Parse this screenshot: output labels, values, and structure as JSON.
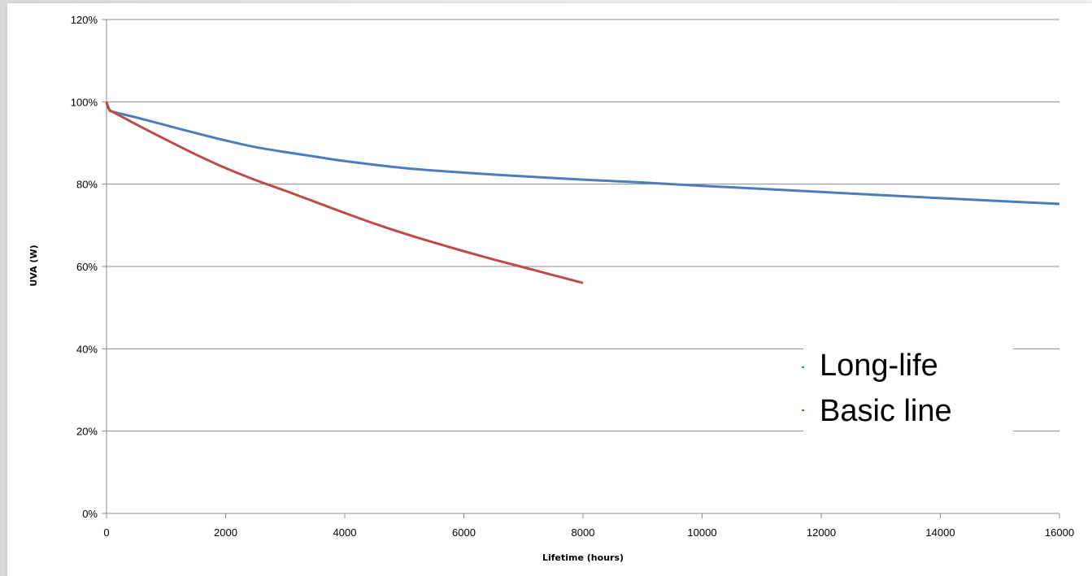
{
  "chart_data": {
    "type": "line",
    "title": "",
    "xlabel": "Lifetime (hours)",
    "ylabel": "UVA (W)",
    "xlim": [
      0,
      16000
    ],
    "ylim": [
      0,
      120
    ],
    "x_ticks": [
      "0",
      "2000",
      "4000",
      "6000",
      "8000",
      "10000",
      "12000",
      "14000",
      "16000"
    ],
    "y_ticks": [
      "0%",
      "20%",
      "40%",
      "60%",
      "80%",
      "100%",
      "120%"
    ],
    "grid": "horizontal",
    "legend_position": "right",
    "series": [
      {
        "name": "Long-life",
        "color": "#4a7ebb",
        "x": [
          0,
          50,
          100,
          500,
          1000,
          1500,
          2000,
          2500,
          3000,
          3500,
          4000,
          5000,
          6000,
          7000,
          8000,
          9000,
          10000,
          12000,
          14000,
          16000
        ],
        "y": [
          100,
          98,
          97.6,
          96.2,
          94.3,
          92.4,
          90.6,
          89,
          87.8,
          86.7,
          85.6,
          83.9,
          82.8,
          81.9,
          81.1,
          80.4,
          79.6,
          78.1,
          76.6,
          75.2
        ]
      },
      {
        "name": "Basic line",
        "color": "#be4b48",
        "x": [
          0,
          30,
          60,
          100,
          500,
          1000,
          1500,
          2000,
          2500,
          3000,
          3500,
          4000,
          4500,
          5000,
          5500,
          6000,
          6500,
          7000,
          7500,
          8000
        ],
        "y": [
          100,
          98.5,
          97.9,
          97.6,
          94.5,
          90.8,
          87.2,
          83.9,
          81,
          78.4,
          75.7,
          73,
          70.4,
          68,
          65.8,
          63.7,
          61.7,
          59.8,
          57.9,
          56
        ]
      }
    ]
  }
}
